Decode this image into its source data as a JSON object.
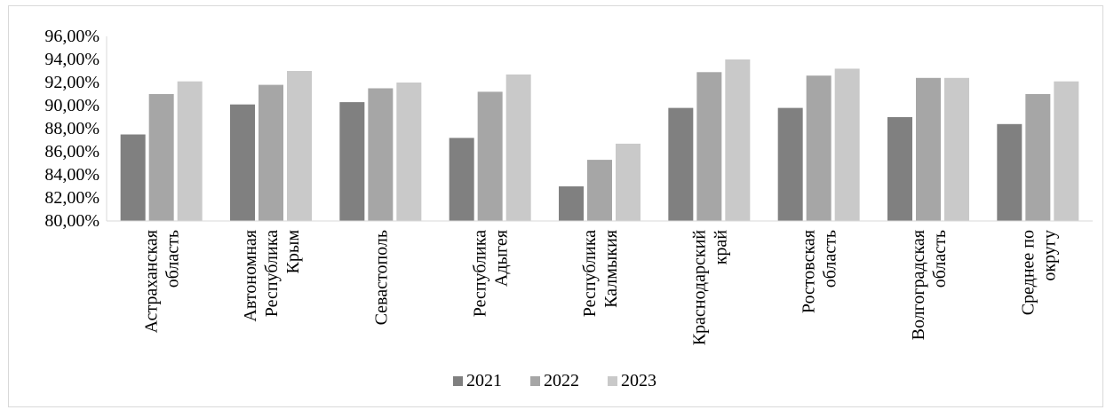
{
  "chart_data": {
    "type": "bar",
    "title": "",
    "xlabel": "",
    "ylabel": "",
    "ylim": [
      80,
      96
    ],
    "yticks": [
      80,
      82,
      84,
      86,
      88,
      90,
      92,
      94,
      96
    ],
    "ytick_labels": [
      "80,00%",
      "82,00%",
      "84,00%",
      "86,00%",
      "88,00%",
      "90,00%",
      "92,00%",
      "94,00%",
      "96,00%"
    ],
    "grid": false,
    "legend_position": "bottom",
    "categories": [
      [
        "Астраханская",
        "область"
      ],
      [
        "Автономная",
        "Республика",
        "Крым"
      ],
      [
        "Севастополь"
      ],
      [
        "Республика",
        "Адыгея"
      ],
      [
        "Республика",
        "Калмыкия"
      ],
      [
        "Краснодарский",
        "край"
      ],
      [
        "Ростовская",
        "область"
      ],
      [
        "Волгоградская",
        "область"
      ],
      [
        "Среднее по",
        "округу"
      ]
    ],
    "series": [
      {
        "name": "2021",
        "color": "#808080",
        "values": [
          87.5,
          90.1,
          90.3,
          87.2,
          83.0,
          89.8,
          89.8,
          89.0,
          88.4
        ]
      },
      {
        "name": "2022",
        "color": "#a6a6a6",
        "values": [
          91.0,
          91.8,
          91.5,
          91.2,
          85.3,
          92.9,
          92.6,
          92.4,
          91.0
        ]
      },
      {
        "name": "2023",
        "color": "#c9c9c9",
        "values": [
          92.1,
          93.0,
          92.0,
          92.7,
          86.7,
          94.0,
          93.2,
          92.4,
          92.1
        ]
      }
    ]
  }
}
